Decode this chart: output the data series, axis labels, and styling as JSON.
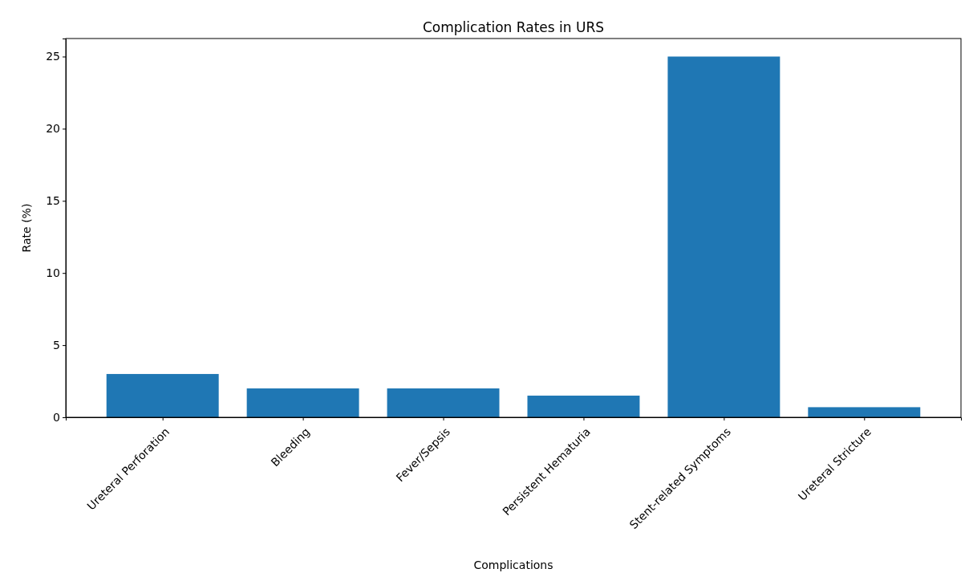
{
  "chart_data": {
    "type": "bar",
    "title": "Complication Rates in URS",
    "xlabel": "Complications",
    "ylabel": "Rate (%)",
    "categories": [
      "Ureteral Perforation",
      "Bleeding",
      "Fever/Sepsis",
      "Persistent Hematuria",
      "Stent-related Symptoms",
      "Ureteral Stricture"
    ],
    "values": [
      3,
      2,
      2,
      1.5,
      25,
      0.7
    ],
    "color": "#1f77b4",
    "ylim": [
      0,
      26.25
    ],
    "yticks": [
      0,
      5,
      10,
      15,
      20,
      25
    ],
    "grid": false
  }
}
